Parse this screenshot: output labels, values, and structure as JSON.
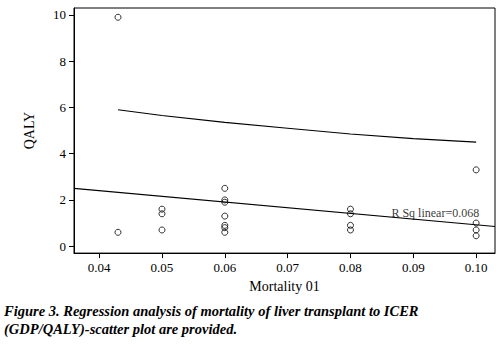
{
  "chart_data": {
    "type": "scatter",
    "x_label": "Mortality 01",
    "y_label": "QALY",
    "caption": "Figure 3. Regression analysis of mortality of liver transplant to ICER (GDP/QALY)-scatter plot are provided.",
    "xlim": [
      0.036,
      0.103
    ],
    "xticks": [
      0.04,
      0.05,
      0.06,
      0.07,
      0.08,
      0.09,
      {
        "value": 0.1,
        "label": "0.10"
      }
    ],
    "ylim": [
      -0.3,
      10.3
    ],
    "yticks": [
      0,
      2,
      4,
      6,
      8,
      10
    ],
    "grid": false,
    "series": [
      {
        "type": "scatter",
        "marker": "open circle",
        "color": "#000000",
        "x": [
          0.043,
          0.043,
          0.05,
          0.05,
          0.05,
          0.06,
          0.06,
          0.06,
          0.06,
          0.06,
          0.06,
          0.06,
          0.08,
          0.08,
          0.08,
          0.08,
          0.1,
          0.1,
          0.1,
          0.1
        ],
        "values": [
          9.9,
          0.6,
          1.6,
          1.4,
          0.7,
          2.5,
          2.0,
          1.9,
          1.3,
          0.9,
          0.8,
          0.6,
          1.6,
          1.4,
          0.9,
          0.7,
          3.3,
          1.0,
          0.7,
          0.45
        ]
      },
      {
        "type": "line",
        "line_style": "solid",
        "color": "#000000",
        "x": [
          0.036,
          0.103
        ],
        "values": [
          2.5,
          0.85
        ]
      },
      {
        "type": "line",
        "line_style": "solid",
        "color": "#000000",
        "x": [
          0.043,
          0.05,
          0.06,
          0.07,
          0.08,
          0.09,
          0.1
        ],
        "values": [
          5.9,
          5.65,
          5.35,
          5.1,
          4.85,
          4.65,
          4.5
        ]
      }
    ],
    "annotations": [
      {
        "text": "R Sq linear=0.068",
        "x": 0.0935,
        "y": 1.45
      }
    ]
  }
}
